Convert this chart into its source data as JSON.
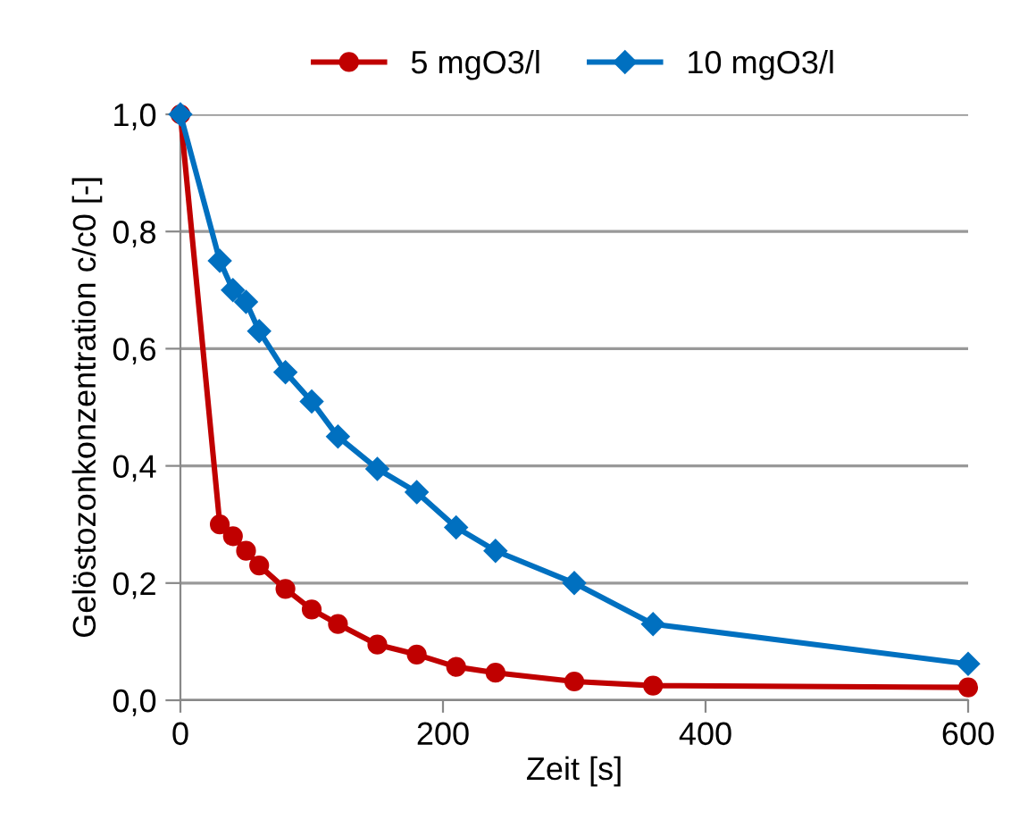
{
  "chart_data": {
    "type": "line",
    "xlabel": "Zeit [s]",
    "ylabel": "Gelöstozonkonzentration c/c0 [-]",
    "x": [
      0,
      30,
      40,
      50,
      60,
      80,
      100,
      120,
      150,
      180,
      210,
      240,
      300,
      360,
      600
    ],
    "series": [
      {
        "name": "5 mgO3/l",
        "color": "#c00000",
        "marker": "circle",
        "values": [
          1.0,
          0.3,
          0.28,
          0.255,
          0.23,
          0.19,
          0.155,
          0.13,
          0.095,
          0.078,
          0.057,
          0.047,
          0.032,
          0.025,
          0.022
        ]
      },
      {
        "name": "10 mgO3/l",
        "color": "#0070c0",
        "marker": "diamond",
        "values": [
          1.0,
          0.75,
          0.7,
          0.68,
          0.63,
          0.56,
          0.51,
          0.45,
          0.395,
          0.355,
          0.295,
          0.255,
          0.2,
          0.13,
          0.062
        ]
      }
    ],
    "xlim": [
      0,
      600
    ],
    "xticks": [
      0,
      200,
      400,
      600
    ],
    "ylim": [
      0,
      1
    ],
    "yticks": [
      {
        "value": 0,
        "label": "0,0"
      },
      {
        "value": 0.2,
        "label": "0,2"
      },
      {
        "value": 0.4,
        "label": "0,4"
      },
      {
        "value": 0.6,
        "label": "0,6"
      },
      {
        "value": 0.8,
        "label": "0,8"
      },
      {
        "value": 1,
        "label": "1,0"
      }
    ],
    "grid": "y",
    "legend": "top",
    "line_style": "solid"
  }
}
